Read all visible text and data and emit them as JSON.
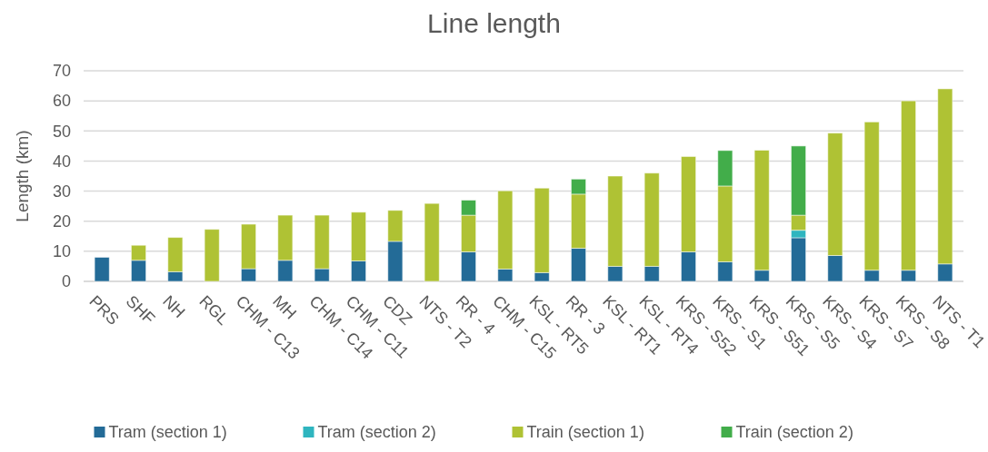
{
  "chart_data": {
    "type": "bar",
    "title": "Line length",
    "ylabel": "Length (km)",
    "stacked": true,
    "grid": "y",
    "legend": "bottom",
    "categories": [
      "PRS",
      "SHF",
      "NH",
      "RGL",
      "CHM - C13",
      "MH",
      "CHM - C14",
      "CHM - C11",
      "CDZ",
      "NTS - T2",
      "RR - 4",
      "CHM - C15",
      "KSL - RT5",
      "RR - 3",
      "KSL - RT1",
      "KSL - RT4",
      "KRS - S52",
      "KRS - S1",
      "KRS - S51",
      "KRS - S5",
      "KRS - S4",
      "KRS - S7",
      "KRS - S8",
      "NTS - T1"
    ],
    "series": [
      {
        "name": "Tram (section 1)",
        "color": "#236b97",
        "values": [
          8,
          7,
          3.2,
          null,
          4.2,
          7,
          4.2,
          6.8,
          13.3,
          null,
          9.8,
          4.1,
          2.9,
          11,
          5,
          5,
          9.8,
          6.5,
          3.7,
          14.5,
          8.6,
          3.7,
          3.7,
          5.8
        ]
      },
      {
        "name": "Tram (section 2)",
        "color": "#2fb5bf",
        "values": [
          null,
          null,
          null,
          null,
          null,
          null,
          null,
          null,
          null,
          null,
          null,
          null,
          null,
          null,
          null,
          null,
          null,
          null,
          null,
          2.5,
          null,
          null,
          null,
          null
        ]
      },
      {
        "name": "Train (section 1)",
        "color": "#afc234",
        "values": [
          null,
          5,
          11.4,
          17.3,
          14.8,
          15,
          17.8,
          16.2,
          10.3,
          25.9,
          12.2,
          26,
          28.1,
          18,
          30,
          31,
          31.7,
          25.2,
          39.9,
          5,
          40.7,
          49.3,
          56.3,
          58.2
        ]
      },
      {
        "name": "Train (section 2)",
        "color": "#42ad4a",
        "values": [
          null,
          null,
          null,
          null,
          null,
          null,
          null,
          null,
          null,
          null,
          5,
          null,
          null,
          5,
          null,
          null,
          null,
          11.8,
          null,
          23,
          null,
          null,
          null,
          null
        ]
      }
    ],
    "ylim": [
      0,
      70
    ],
    "yticks": [
      0,
      10,
      20,
      30,
      40,
      50,
      60,
      70
    ]
  }
}
